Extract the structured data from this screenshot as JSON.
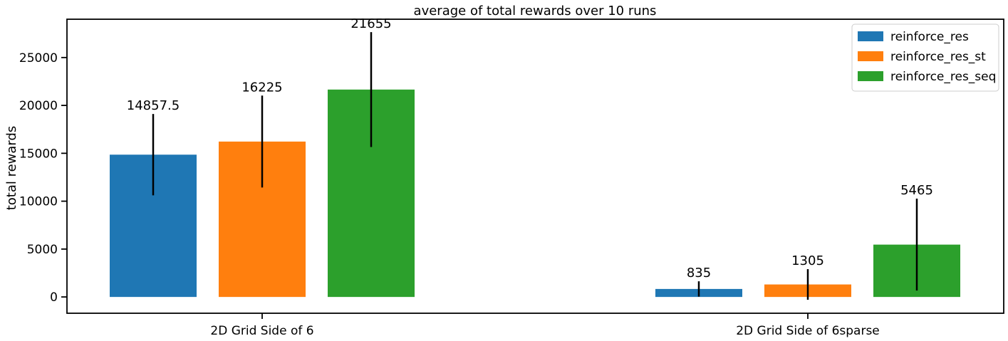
{
  "chart_data": {
    "type": "bar",
    "title": "average of total rewards over 10 runs",
    "xlabel": "",
    "ylabel": "total rewards",
    "ylim": [
      -1700,
      29000
    ],
    "yticks": [
      0,
      5000,
      10000,
      15000,
      20000,
      25000
    ],
    "categories": [
      "2D Grid Side of 6",
      "2D Grid Side of 6sparse"
    ],
    "legend_position": "top-right",
    "grid": false,
    "series": [
      {
        "name": "reinforce_res",
        "color": "#1f77b4",
        "values": [
          14857.5,
          835
        ],
        "labels": [
          "14857.5",
          "835"
        ],
        "error": [
          4250,
          800
        ]
      },
      {
        "name": "reinforce_res_st",
        "color": "#ff7f0e",
        "values": [
          16225,
          1305
        ],
        "labels": [
          "16225",
          "1305"
        ],
        "error": [
          4800,
          1600
        ]
      },
      {
        "name": "reinforce_res_seq",
        "color": "#2ca02c",
        "values": [
          21655,
          5465
        ],
        "labels": [
          "21655",
          "5465"
        ],
        "error": [
          6000,
          4800
        ]
      }
    ]
  }
}
